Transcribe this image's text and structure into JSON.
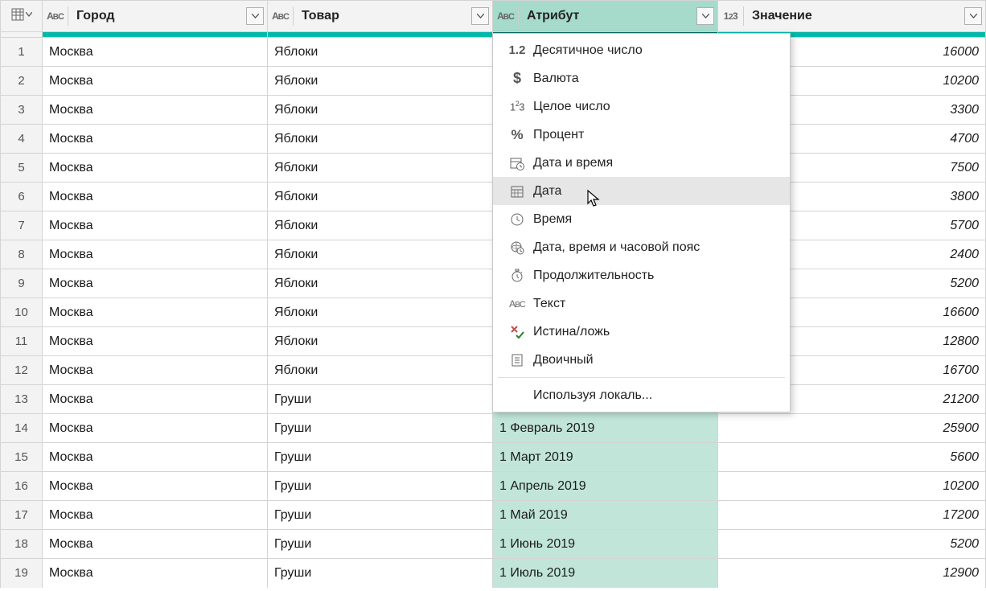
{
  "colors": {
    "separator_normal": "#01b8aa",
    "separator_selected": "#056b62",
    "header_bg": "#f3f3f3",
    "header_selected_bg": "#a6dacb",
    "attr_cell_bg": "#c1e6d9",
    "border": "#d4d4d4",
    "menu_hover": "#e6e6e6",
    "text": "#1a1a1a"
  },
  "columns": [
    {
      "key": "city",
      "label": "Город",
      "type_icon": "abc",
      "selected": false
    },
    {
      "key": "product",
      "label": "Товар",
      "type_icon": "abc",
      "selected": false
    },
    {
      "key": "attr",
      "label": "Атрибут",
      "type_icon": "abc",
      "selected": true
    },
    {
      "key": "value",
      "label": "Значение",
      "type_icon": "123",
      "selected": false
    }
  ],
  "rows": [
    {
      "n": 1,
      "city": "Москва",
      "product": "Яблоки",
      "attr": "",
      "value": "16000"
    },
    {
      "n": 2,
      "city": "Москва",
      "product": "Яблоки",
      "attr": "",
      "value": "10200"
    },
    {
      "n": 3,
      "city": "Москва",
      "product": "Яблоки",
      "attr": "",
      "value": "3300"
    },
    {
      "n": 4,
      "city": "Москва",
      "product": "Яблоки",
      "attr": "",
      "value": "4700"
    },
    {
      "n": 5,
      "city": "Москва",
      "product": "Яблоки",
      "attr": "",
      "value": "7500"
    },
    {
      "n": 6,
      "city": "Москва",
      "product": "Яблоки",
      "attr": "",
      "value": "3800"
    },
    {
      "n": 7,
      "city": "Москва",
      "product": "Яблоки",
      "attr": "",
      "value": "5700"
    },
    {
      "n": 8,
      "city": "Москва",
      "product": "Яблоки",
      "attr": "",
      "value": "2400"
    },
    {
      "n": 9,
      "city": "Москва",
      "product": "Яблоки",
      "attr": "",
      "value": "5200"
    },
    {
      "n": 10,
      "city": "Москва",
      "product": "Яблоки",
      "attr": "",
      "value": "16600"
    },
    {
      "n": 11,
      "city": "Москва",
      "product": "Яблоки",
      "attr": "",
      "value": "12800"
    },
    {
      "n": 12,
      "city": "Москва",
      "product": "Яблоки",
      "attr": "",
      "value": "16700"
    },
    {
      "n": 13,
      "city": "Москва",
      "product": "Груши",
      "attr": "",
      "value": "21200"
    },
    {
      "n": 14,
      "city": "Москва",
      "product": "Груши",
      "attr": "1 Февраль 2019",
      "value": "25900"
    },
    {
      "n": 15,
      "city": "Москва",
      "product": "Груши",
      "attr": "1 Март 2019",
      "value": "5600"
    },
    {
      "n": 16,
      "city": "Москва",
      "product": "Груши",
      "attr": "1 Апрель 2019",
      "value": "10200"
    },
    {
      "n": 17,
      "city": "Москва",
      "product": "Груши",
      "attr": "1 Май 2019",
      "value": "17200"
    },
    {
      "n": 18,
      "city": "Москва",
      "product": "Груши",
      "attr": "1 Июнь 2019",
      "value": "5200"
    },
    {
      "n": 19,
      "city": "Москва",
      "product": "Груши",
      "attr": "1 Июль 2019",
      "value": "12900"
    }
  ],
  "menu": {
    "items": [
      {
        "icon": "decimal",
        "label": "Десятичное число",
        "hovered": false
      },
      {
        "icon": "currency",
        "label": "Валюта",
        "hovered": false
      },
      {
        "icon": "int",
        "label": "Целое число",
        "hovered": false
      },
      {
        "icon": "percent",
        "label": "Процент",
        "hovered": false
      },
      {
        "icon": "datetime",
        "label": "Дата и время",
        "hovered": false
      },
      {
        "icon": "date",
        "label": "Дата",
        "hovered": true
      },
      {
        "icon": "time",
        "label": "Время",
        "hovered": false
      },
      {
        "icon": "datetz",
        "label": "Дата, время и часовой пояс",
        "hovered": false
      },
      {
        "icon": "duration",
        "label": "Продолжительность",
        "hovered": false
      },
      {
        "icon": "text",
        "label": "Текст",
        "hovered": false
      },
      {
        "icon": "bool",
        "label": "Истина/ложь",
        "hovered": false
      },
      {
        "icon": "binary",
        "label": "Двоичный",
        "hovered": false
      },
      {
        "separator": true
      },
      {
        "icon": "",
        "label": "Используя локаль...",
        "hovered": false
      }
    ]
  }
}
